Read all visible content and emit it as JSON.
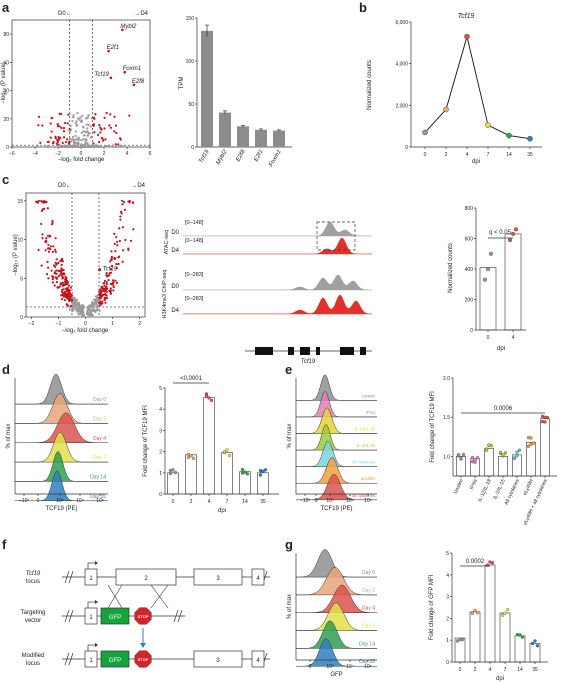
{
  "panels": {
    "a": "a",
    "b": "b",
    "c": "c",
    "d": "d",
    "e": "e",
    "f": "f",
    "g": "g"
  },
  "colors": {
    "red": "#c0141d",
    "grey": "#9a9a9a",
    "bar": "#8c8c8c",
    "gfp": "#14a33c",
    "stop": "#d9212b"
  },
  "panel_a": {
    "volcano": {
      "left_dir": "D0←",
      "right_dir": "→D4",
      "xlabel": "−log₂ fold change",
      "ylabel": "−log₁₀ (P value)",
      "xticks": [
        "−6",
        "−4",
        "−2",
        "0",
        "2",
        "4",
        "6"
      ],
      "yticks": [
        "0",
        "20",
        "40",
        "60",
        "80"
      ],
      "genes": [
        "Mybl2",
        "E2f1",
        "Foxm1",
        "Tcf19",
        "E2f8"
      ]
    },
    "bars": {
      "ylabel": "TPM",
      "yticks": [
        "0",
        "50",
        "100",
        "150"
      ]
    }
  },
  "panel_b": {
    "title": "Tcf19",
    "ylabel": "Normalized counts",
    "xlabel": "dpi",
    "yticks": [
      "0",
      "2,000",
      "4,000",
      "6,000"
    ]
  },
  "panel_c": {
    "volcano": {
      "left_dir": "D0←",
      "right_dir": "→D4",
      "xlabel": "−log₂ fold change",
      "ylabel": "−log₁₀ (P value)",
      "xticks": [
        "−2",
        "−1",
        "0",
        "1",
        "2"
      ],
      "yticks": [
        "0",
        "5",
        "10",
        "15"
      ],
      "gene": "Tcf19"
    },
    "tracks": {
      "atac_label": "ATAC-seq",
      "chip_label": "H3K4me3 ChIP-seq",
      "atac_range": "[0–148]",
      "chip_range": "[0–283]",
      "d0": "D0",
      "d4": "D4",
      "gene": "Tcf19"
    },
    "dots": {
      "ylabel": "Normalized counts",
      "xlabel": "dpi",
      "q": "q < 0.05",
      "yticks": [
        "0",
        "200",
        "400",
        "600",
        "800"
      ]
    }
  },
  "panel_d": {
    "hist": {
      "xlabel": "TCF19 (PE)",
      "ylabel": "% of max",
      "xticks": [
        "−10³",
        "0",
        "10³",
        "10⁴",
        "10⁵"
      ],
      "labels": [
        "Day 0",
        "Day 2",
        "Day 4",
        "Day 7",
        "Day 14",
        "Day 35"
      ],
      "colors": [
        "#8f8f8f",
        "#e8a57a",
        "#d9534f",
        "#e3e04a",
        "#2f9e52",
        "#2f7fc1"
      ]
    },
    "scatter": {
      "ylabel": "Fold change of TCF19 MFI",
      "xlabel": "dpi",
      "p": "<0.0001",
      "yticks": [
        "0",
        "1",
        "2",
        "3",
        "4",
        "5"
      ]
    }
  },
  "panel_e": {
    "hist": {
      "xlabel": "TCF19 (PE)",
      "ylabel": "% of max",
      "xticks": [
        "−10³",
        "0",
        "10³",
        "10⁴",
        "10⁵"
      ],
      "labels": [
        "Unstim",
        "IFNα",
        "IL-12/IL-18",
        "IL-2/IL-15",
        "All cytokines",
        "αLy49H",
        "αLy49H + all cytokines"
      ],
      "colors": [
        "#8f8f8f",
        "#e07fb4",
        "#e6d13a",
        "#9ccc3a",
        "#7dd3e0",
        "#f2a03d",
        "#d9534f"
      ]
    },
    "scatter": {
      "ylabel": "Fold change of TCF19 MFI",
      "p": "0.0006",
      "yticks": [
        "1.0",
        "1.5",
        "2.0"
      ]
    }
  },
  "panel_f": {
    "rows": [
      "Tcf19 locus",
      "Targeting vector",
      "Modified locus"
    ],
    "exons": [
      "1",
      "2",
      "3",
      "4"
    ],
    "gfp": "GFP",
    "stop": "STOP"
  },
  "panel_g": {
    "hist": {
      "xlabel": "GFP",
      "ylabel": "% of max",
      "xticks": [
        "0",
        "10³",
        "10⁴",
        "10⁵"
      ],
      "labels": [
        "Day 0",
        "Day 2",
        "Day 4",
        "Day 7",
        "Day 14",
        "Day 35"
      ],
      "colors": [
        "#8f8f8f",
        "#e8a57a",
        "#d9534f",
        "#e3e04a",
        "#2f9e52",
        "#2f7fc1"
      ]
    },
    "bars": {
      "ylabel": "Fold change of GFP MFI",
      "xlabel": "dpi",
      "p": "0.0002",
      "yticks": [
        "0",
        "1",
        "2",
        "3",
        "4",
        "5"
      ]
    }
  },
  "chart_data": [
    {
      "id": "a-tpm",
      "type": "bar",
      "categories": [
        "Tcf19",
        "Mybl2",
        "E2f8",
        "E2f1",
        "Foxm1"
      ],
      "values": [
        135,
        40,
        24,
        20,
        19
      ],
      "ylabel": "TPM",
      "ylim": [
        0,
        150
      ]
    },
    {
      "id": "b-timecourse",
      "type": "line",
      "title": "Tcf19",
      "categories": [
        "0",
        "2",
        "4",
        "7",
        "14",
        "35"
      ],
      "values": [
        700,
        1800,
        5300,
        1050,
        550,
        400
      ],
      "point_colors": [
        "#9a9a9a",
        "#f0a860",
        "#d9534f",
        "#e3e04a",
        "#2fa84f",
        "#2f7fc1"
      ],
      "xlabel": "dpi",
      "ylabel": "Normalized counts",
      "ylim": [
        0,
        6000
      ]
    },
    {
      "id": "c-counts",
      "type": "bar",
      "categories": [
        "0",
        "4"
      ],
      "values": [
        410,
        630
      ],
      "points": [
        [
          330,
          400,
          500
        ],
        [
          590,
          630,
          660
        ]
      ],
      "xlabel": "dpi",
      "ylabel": "Normalized counts",
      "ylim": [
        0,
        800
      ]
    },
    {
      "id": "d-mfi",
      "type": "bar",
      "categories": [
        "0",
        "2",
        "4",
        "7",
        "14",
        "35"
      ],
      "values": [
        1.0,
        1.85,
        4.55,
        1.95,
        1.05,
        1.0
      ],
      "point_colors": [
        "#9a9a9a",
        "#f0a860",
        "#d9534f",
        "#e3e04a",
        "#2fa84f",
        "#2f7fc1"
      ],
      "xlabel": "dpi",
      "ylabel": "Fold change of TCF19 MFI",
      "ylim": [
        0,
        5
      ]
    },
    {
      "id": "e-mfi",
      "type": "bar",
      "categories": [
        "Unstim",
        "IFNα",
        "IL-12/IL-18",
        "IL-2/IL-15",
        "All cytokines",
        "αLy49H",
        "αLy49H + all cytokines"
      ],
      "values": [
        1.0,
        0.97,
        1.1,
        1.0,
        1.02,
        1.18,
        1.48
      ],
      "point_colors": [
        "#9a9a9a",
        "#e07fb4",
        "#d8c93a",
        "#9ccc3a",
        "#5ec6d8",
        "#f2a03d",
        "#d9534f"
      ],
      "ylabel": "Fold change of TCF19 MFI",
      "ylim": [
        0.75,
        2.0
      ]
    },
    {
      "id": "g-mfi",
      "type": "bar",
      "categories": [
        "0",
        "2",
        "4",
        "7",
        "14",
        "35"
      ],
      "values": [
        1.1,
        2.3,
        4.45,
        2.25,
        1.2,
        0.85
      ],
      "point_colors": [
        "#9a9a9a",
        "#f0a860",
        "#d9534f",
        "#e3e04a",
        "#2fa84f",
        "#2f7fc1"
      ],
      "xlabel": "dpi",
      "ylabel": "Fold change of GFP MFI",
      "ylim": [
        0,
        5
      ]
    }
  ]
}
